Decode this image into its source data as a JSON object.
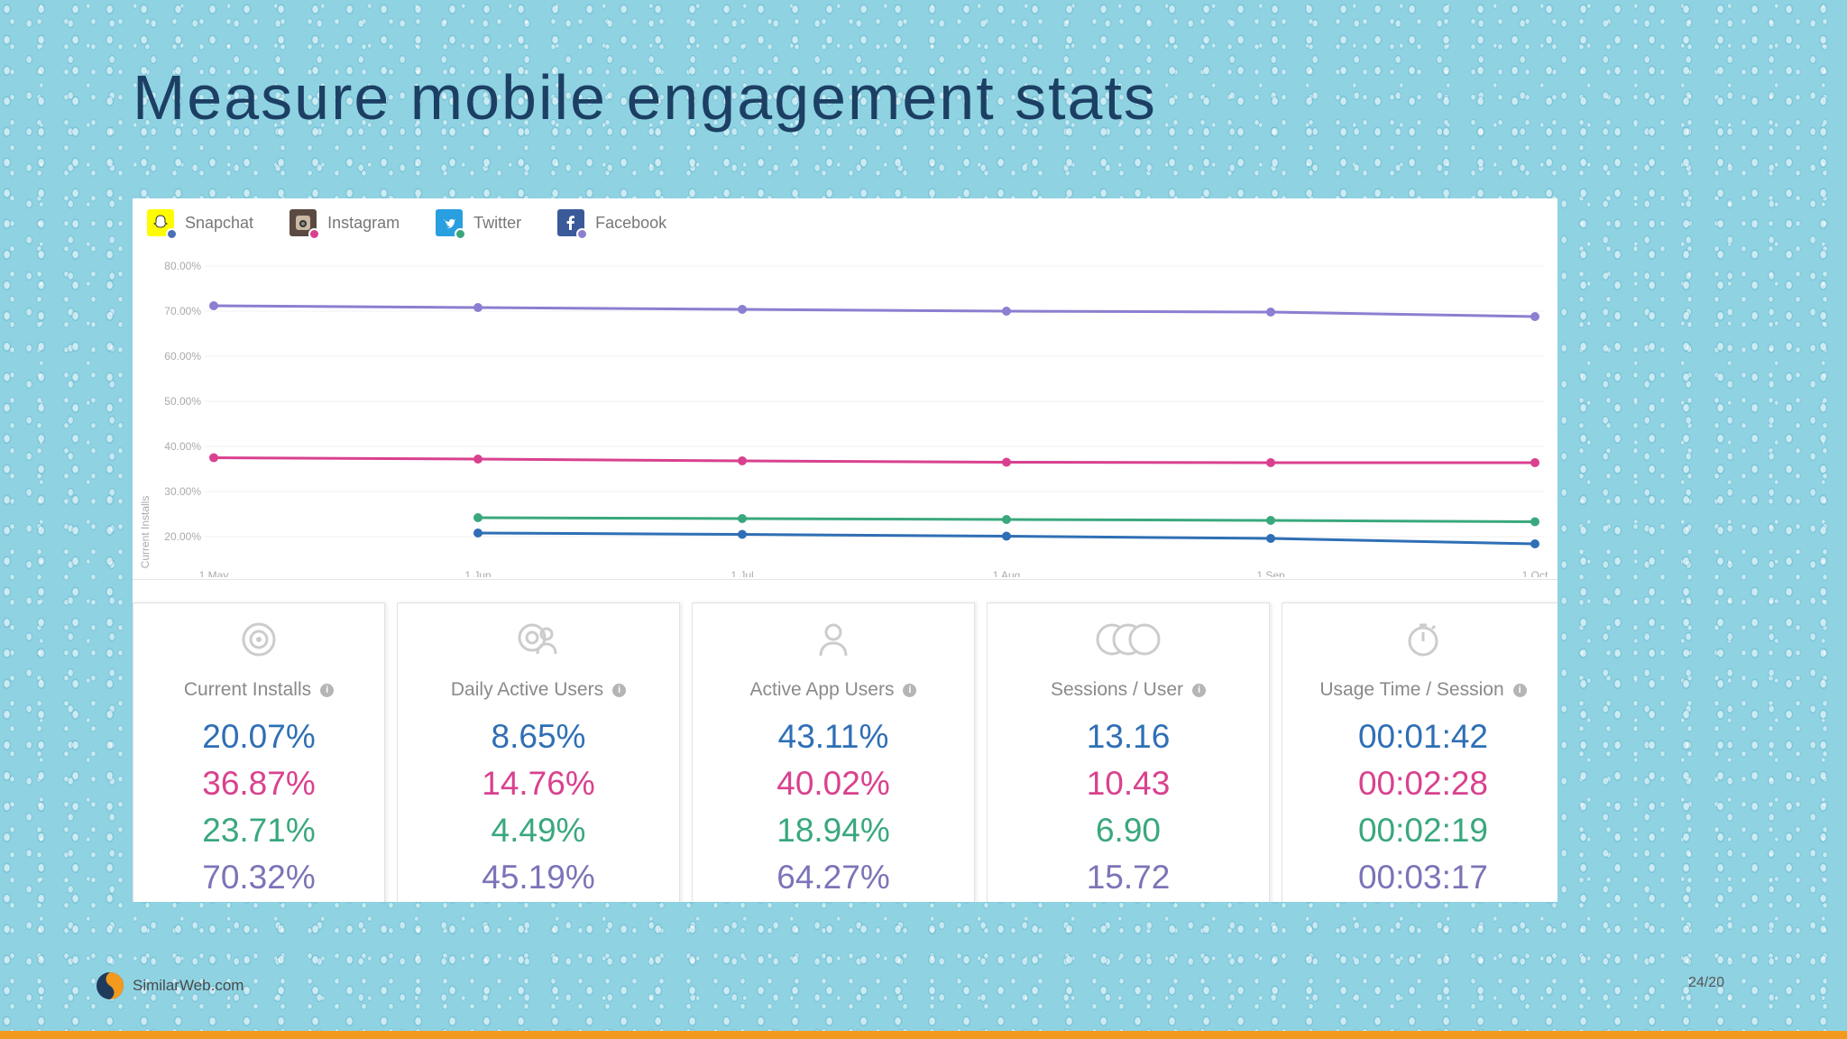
{
  "slide": {
    "title": "Measure mobile engagement stats",
    "footer_brand": "SimilarWeb.com",
    "page_number": "24/20"
  },
  "legend": [
    {
      "label": "Snapchat",
      "icon": "snapchat-icon",
      "color": "#4a6fb5",
      "icon_bg": "#fffc00"
    },
    {
      "label": "Instagram",
      "icon": "instagram-icon",
      "color": "#d9418e",
      "icon_bg": "#5a4a42"
    },
    {
      "label": "Twitter",
      "icon": "twitter-icon",
      "color": "#3aa87d",
      "icon_bg": "#2a9fe0"
    },
    {
      "label": "Facebook",
      "icon": "facebook-icon",
      "color": "#8a7fd0",
      "icon_bg": "#3b5a9a"
    }
  ],
  "chart_data": {
    "type": "line",
    "ylabel": "Current Installs",
    "ylim": [
      15,
      80
    ],
    "yticks": [
      "80.00%",
      "70.00%",
      "60.00%",
      "50.00%",
      "40.00%",
      "30.00%",
      "20.00%"
    ],
    "ytick_values": [
      80,
      70,
      60,
      50,
      40,
      30,
      20
    ],
    "x_labels": [
      "1 May",
      "1 Jun",
      "1 Jul",
      "1 Aug",
      "1 Sep",
      "1 Oct"
    ],
    "grid": true,
    "series": [
      {
        "name": "Facebook",
        "color": "#8a7fd0",
        "values": [
          71.2,
          70.8,
          70.4,
          70.0,
          69.8,
          68.8
        ]
      },
      {
        "name": "Instagram",
        "color": "#d9418e",
        "values": [
          37.5,
          37.2,
          36.8,
          36.5,
          36.4,
          36.4
        ]
      },
      {
        "name": "Twitter",
        "color": "#3aa87d",
        "values": [
          null,
          24.2,
          24.0,
          23.8,
          23.6,
          23.3
        ]
      },
      {
        "name": "Snapchat",
        "color": "#2f6fb5",
        "values": [
          null,
          20.8,
          20.5,
          20.1,
          19.6,
          18.4
        ]
      }
    ]
  },
  "stats": [
    {
      "label": "Current Installs",
      "icon": "installs-icon",
      "values": [
        "20.07%",
        "36.87%",
        "23.71%",
        "70.32%"
      ]
    },
    {
      "label": "Daily Active Users",
      "icon": "users-icon",
      "values": [
        "8.65%",
        "14.76%",
        "4.49%",
        "45.19%"
      ]
    },
    {
      "label": "Active App Users",
      "icon": "user-icon",
      "values": [
        "43.11%",
        "40.02%",
        "18.94%",
        "64.27%"
      ]
    },
    {
      "label": "Sessions / User",
      "icon": "sessions-icon",
      "values": [
        "13.16",
        "10.43",
        "6.90",
        "15.72"
      ]
    },
    {
      "label": "Usage Time / Session",
      "icon": "timer-icon",
      "values": [
        "00:01:42",
        "00:02:28",
        "00:02:19",
        "00:03:17"
      ]
    }
  ],
  "stat_colors": [
    "#2f6fb5",
    "#d9418e",
    "#3aa87d",
    "#7b74b8"
  ],
  "info_glyph": "i"
}
